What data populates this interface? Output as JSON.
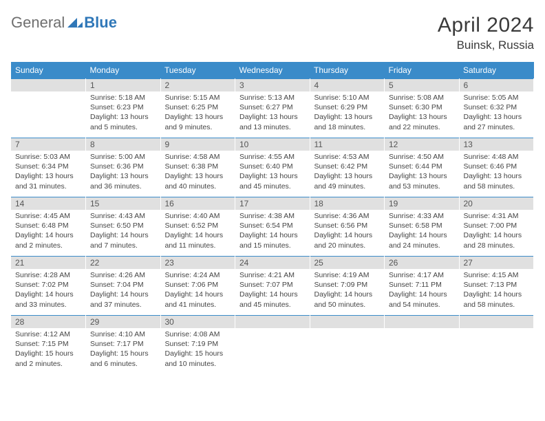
{
  "logo": {
    "word1": "General",
    "word2": "Blue"
  },
  "title": {
    "month": "April 2024",
    "location": "Buinsk, Russia"
  },
  "colors": {
    "header_bg": "#3a8bc9",
    "header_fg": "#ffffff",
    "daynum_bg": "#e0e0e0",
    "daynum_fg": "#555555",
    "text": "#444444",
    "rule": "#3a8bc9",
    "logo_gray": "#6f6f6f",
    "logo_blue": "#2f77b8"
  },
  "daysOfWeek": [
    "Sunday",
    "Monday",
    "Tuesday",
    "Wednesday",
    "Thursday",
    "Friday",
    "Saturday"
  ],
  "weeks": [
    [
      null,
      {
        "n": 1,
        "sr": "5:18 AM",
        "ss": "6:23 PM",
        "dl": "13 hours and 5 minutes."
      },
      {
        "n": 2,
        "sr": "5:15 AM",
        "ss": "6:25 PM",
        "dl": "13 hours and 9 minutes."
      },
      {
        "n": 3,
        "sr": "5:13 AM",
        "ss": "6:27 PM",
        "dl": "13 hours and 13 minutes."
      },
      {
        "n": 4,
        "sr": "5:10 AM",
        "ss": "6:29 PM",
        "dl": "13 hours and 18 minutes."
      },
      {
        "n": 5,
        "sr": "5:08 AM",
        "ss": "6:30 PM",
        "dl": "13 hours and 22 minutes."
      },
      {
        "n": 6,
        "sr": "5:05 AM",
        "ss": "6:32 PM",
        "dl": "13 hours and 27 minutes."
      }
    ],
    [
      {
        "n": 7,
        "sr": "5:03 AM",
        "ss": "6:34 PM",
        "dl": "13 hours and 31 minutes."
      },
      {
        "n": 8,
        "sr": "5:00 AM",
        "ss": "6:36 PM",
        "dl": "13 hours and 36 minutes."
      },
      {
        "n": 9,
        "sr": "4:58 AM",
        "ss": "6:38 PM",
        "dl": "13 hours and 40 minutes."
      },
      {
        "n": 10,
        "sr": "4:55 AM",
        "ss": "6:40 PM",
        "dl": "13 hours and 45 minutes."
      },
      {
        "n": 11,
        "sr": "4:53 AM",
        "ss": "6:42 PM",
        "dl": "13 hours and 49 minutes."
      },
      {
        "n": 12,
        "sr": "4:50 AM",
        "ss": "6:44 PM",
        "dl": "13 hours and 53 minutes."
      },
      {
        "n": 13,
        "sr": "4:48 AM",
        "ss": "6:46 PM",
        "dl": "13 hours and 58 minutes."
      }
    ],
    [
      {
        "n": 14,
        "sr": "4:45 AM",
        "ss": "6:48 PM",
        "dl": "14 hours and 2 minutes."
      },
      {
        "n": 15,
        "sr": "4:43 AM",
        "ss": "6:50 PM",
        "dl": "14 hours and 7 minutes."
      },
      {
        "n": 16,
        "sr": "4:40 AM",
        "ss": "6:52 PM",
        "dl": "14 hours and 11 minutes."
      },
      {
        "n": 17,
        "sr": "4:38 AM",
        "ss": "6:54 PM",
        "dl": "14 hours and 15 minutes."
      },
      {
        "n": 18,
        "sr": "4:36 AM",
        "ss": "6:56 PM",
        "dl": "14 hours and 20 minutes."
      },
      {
        "n": 19,
        "sr": "4:33 AM",
        "ss": "6:58 PM",
        "dl": "14 hours and 24 minutes."
      },
      {
        "n": 20,
        "sr": "4:31 AM",
        "ss": "7:00 PM",
        "dl": "14 hours and 28 minutes."
      }
    ],
    [
      {
        "n": 21,
        "sr": "4:28 AM",
        "ss": "7:02 PM",
        "dl": "14 hours and 33 minutes."
      },
      {
        "n": 22,
        "sr": "4:26 AM",
        "ss": "7:04 PM",
        "dl": "14 hours and 37 minutes."
      },
      {
        "n": 23,
        "sr": "4:24 AM",
        "ss": "7:06 PM",
        "dl": "14 hours and 41 minutes."
      },
      {
        "n": 24,
        "sr": "4:21 AM",
        "ss": "7:07 PM",
        "dl": "14 hours and 45 minutes."
      },
      {
        "n": 25,
        "sr": "4:19 AM",
        "ss": "7:09 PM",
        "dl": "14 hours and 50 minutes."
      },
      {
        "n": 26,
        "sr": "4:17 AM",
        "ss": "7:11 PM",
        "dl": "14 hours and 54 minutes."
      },
      {
        "n": 27,
        "sr": "4:15 AM",
        "ss": "7:13 PM",
        "dl": "14 hours and 58 minutes."
      }
    ],
    [
      {
        "n": 28,
        "sr": "4:12 AM",
        "ss": "7:15 PM",
        "dl": "15 hours and 2 minutes."
      },
      {
        "n": 29,
        "sr": "4:10 AM",
        "ss": "7:17 PM",
        "dl": "15 hours and 6 minutes."
      },
      {
        "n": 30,
        "sr": "4:08 AM",
        "ss": "7:19 PM",
        "dl": "15 hours and 10 minutes."
      },
      null,
      null,
      null,
      null
    ]
  ],
  "labels": {
    "sunrise": "Sunrise:",
    "sunset": "Sunset:",
    "daylight": "Daylight:"
  }
}
